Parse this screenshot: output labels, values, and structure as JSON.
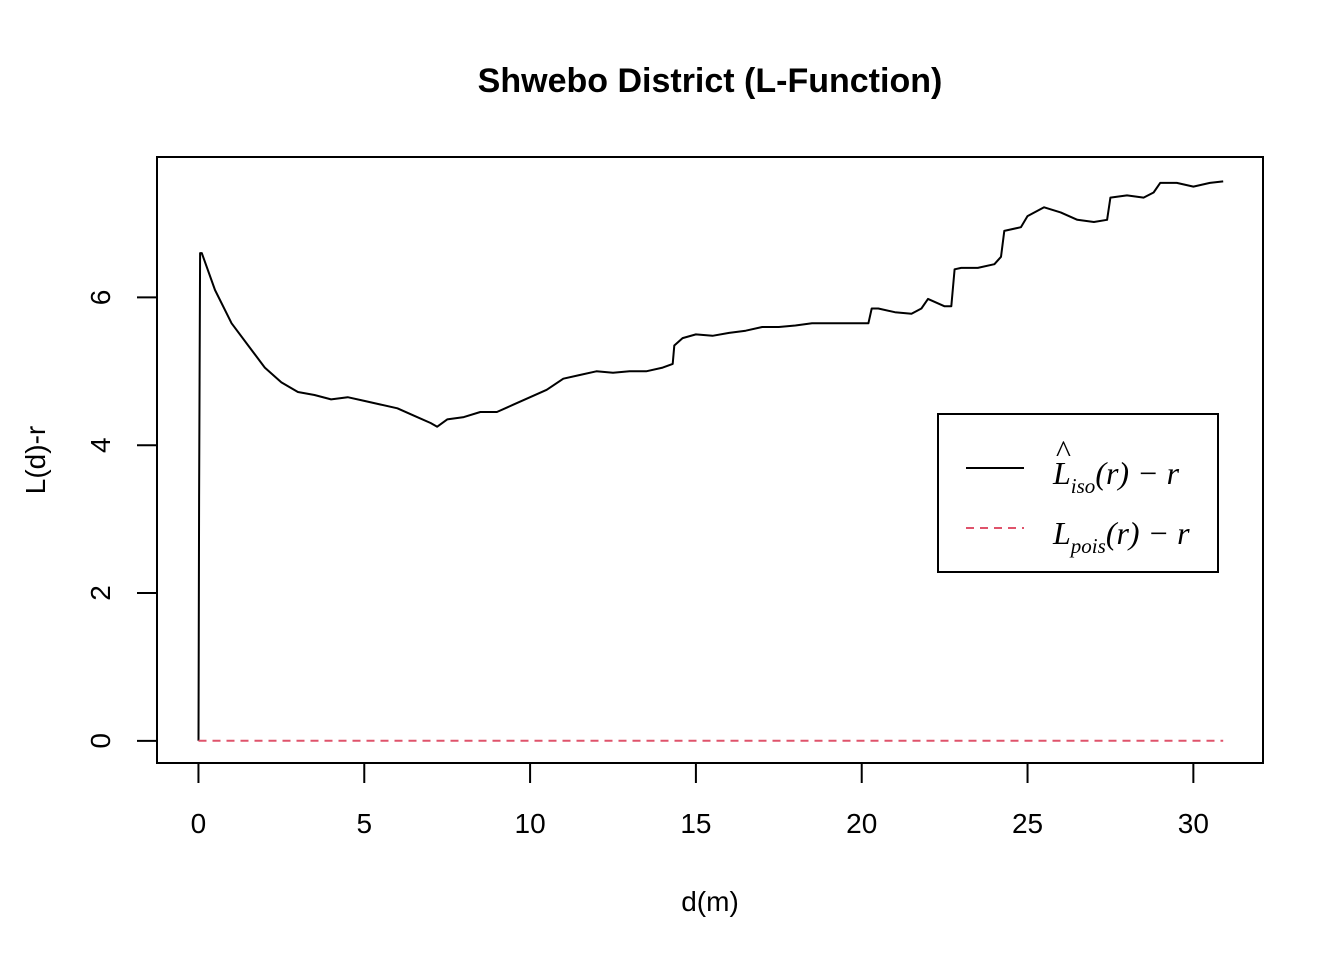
{
  "chart_data": {
    "type": "line",
    "title": "Shwebo District (L-Function)",
    "xlabel": "d(m)",
    "ylabel": "L(d)-r",
    "xlim": [
      -1.25,
      32.1
    ],
    "ylim": [
      -0.3,
      7.9
    ],
    "xticks": [
      0,
      5,
      10,
      15,
      20,
      25,
      30
    ],
    "yticks": [
      0,
      2,
      4,
      6
    ],
    "grid": false,
    "legend_position": "right",
    "series": [
      {
        "name": "L̂iso(r) − r",
        "legend_main": "L",
        "legend_hat": "^",
        "legend_sub": "iso",
        "legend_rest": "(r) − r",
        "color": "#000000",
        "dash": "solid",
        "x": [
          0,
          0.02,
          0.05,
          0.1,
          0.5,
          1.0,
          1.5,
          2.0,
          2.5,
          3.0,
          3.5,
          4.0,
          4.5,
          5.0,
          5.5,
          6.0,
          6.5,
          7.0,
          7.2,
          7.5,
          8.0,
          8.5,
          9.0,
          9.5,
          10.0,
          10.5,
          11.0,
          11.5,
          12.0,
          12.5,
          13.0,
          13.5,
          14.0,
          14.3,
          14.35,
          14.6,
          15.0,
          15.5,
          16.0,
          16.5,
          17.0,
          17.5,
          18.0,
          18.5,
          19.0,
          19.5,
          20.0,
          20.2,
          20.3,
          20.5,
          21.0,
          21.5,
          21.8,
          22.0,
          22.5,
          22.7,
          22.8,
          23.0,
          23.5,
          24.0,
          24.2,
          24.3,
          24.8,
          25.0,
          25.5,
          26.0,
          26.5,
          27.0,
          27.4,
          27.5,
          28.0,
          28.5,
          28.8,
          29.0,
          29.5,
          30.0,
          30.5,
          30.9
        ],
        "y": [
          0,
          3.3,
          6.6,
          6.6,
          6.1,
          5.65,
          5.35,
          5.05,
          4.85,
          4.72,
          4.68,
          4.62,
          4.65,
          4.6,
          4.55,
          4.5,
          4.4,
          4.3,
          4.25,
          4.35,
          4.38,
          4.45,
          4.45,
          4.55,
          4.65,
          4.75,
          4.9,
          4.95,
          5.0,
          4.98,
          5.0,
          5.0,
          5.05,
          5.1,
          5.35,
          5.45,
          5.5,
          5.48,
          5.52,
          5.55,
          5.6,
          5.6,
          5.62,
          5.65,
          5.65,
          5.65,
          5.65,
          5.65,
          5.85,
          5.85,
          5.8,
          5.78,
          5.85,
          5.98,
          5.88,
          5.88,
          6.38,
          6.4,
          6.4,
          6.45,
          6.55,
          6.9,
          6.95,
          7.1,
          7.22,
          7.15,
          7.05,
          7.02,
          7.05,
          7.35,
          7.38,
          7.35,
          7.42,
          7.55,
          7.55,
          7.5,
          7.55,
          7.57
        ]
      },
      {
        "name": "Lpois(r) − r",
        "legend_main": "L",
        "legend_hat": "",
        "legend_sub": "pois",
        "legend_rest": "(r) − r",
        "color": "#DF536B",
        "dash": "dashed",
        "x": [
          0,
          30.9
        ],
        "y": [
          0,
          0
        ]
      }
    ]
  }
}
